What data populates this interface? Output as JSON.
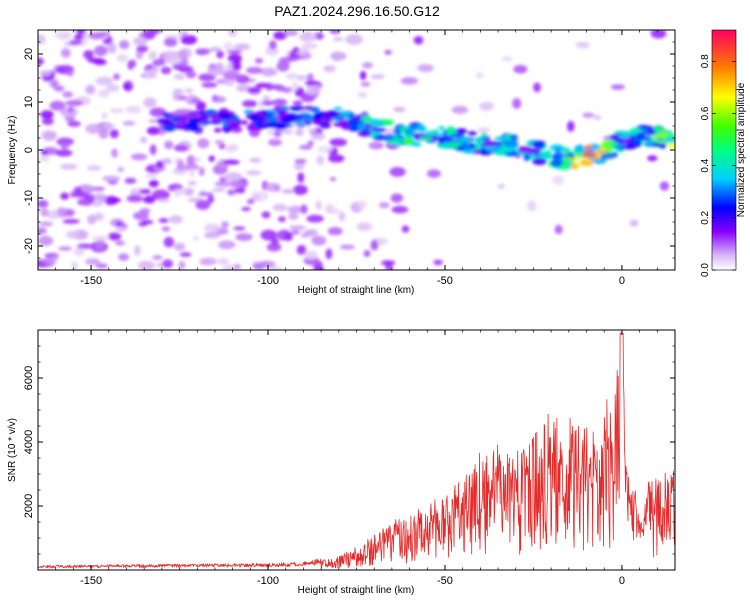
{
  "title": "PAZ1.2024.296.16.50.G12",
  "chart_data": [
    {
      "type": "heatmap",
      "title": "PAZ1.2024.296.16.50.G12",
      "xlabel": "Height of straight line (km)",
      "ylabel": "Frequency (Hz)",
      "xlim": [
        -165,
        15
      ],
      "ylim": [
        -25,
        25
      ],
      "x_ticks": [
        -150,
        -100,
        -50,
        0
      ],
      "y_ticks": [
        -20,
        -10,
        0,
        10,
        20
      ],
      "colorbar": {
        "label": "Normalized spectral amplitude",
        "range": [
          0,
          0.92
        ],
        "ticks": [
          "0.0",
          "0.2",
          "0.4",
          "0.6",
          "0.8"
        ]
      },
      "ridge": {
        "x": [
          -125,
          -110,
          -95,
          -82,
          -75,
          -68,
          -60,
          -52,
          -45,
          -38,
          -32,
          -26,
          -20,
          -15,
          -10,
          -5,
          0,
          5,
          10,
          15
        ],
        "frequency": [
          6,
          6,
          7,
          7,
          6,
          4,
          3,
          3,
          2,
          1,
          1,
          0,
          -1,
          -2,
          -1,
          -1,
          2,
          3,
          3,
          1
        ],
        "amplitude": [
          0.25,
          0.3,
          0.3,
          0.35,
          0.4,
          0.45,
          0.5,
          0.45,
          0.4,
          0.4,
          0.45,
          0.4,
          0.5,
          0.6,
          0.75,
          0.7,
          0.4,
          0.45,
          0.55,
          0.7
        ]
      }
    },
    {
      "type": "line",
      "xlabel": "Height of straight line (km)",
      "ylabel": "SNR (10 * v/v)",
      "xlim": [
        -165,
        15
      ],
      "ylim": [
        0,
        7500
      ],
      "x_ticks": [
        -150,
        -100,
        -50,
        0
      ],
      "y_ticks": [
        2000,
        4000,
        6000
      ],
      "color": "#e52a2a",
      "envelope": {
        "x": [
          -165,
          -100,
          -90,
          -80,
          -72,
          -65,
          -55,
          -45,
          -38,
          -30,
          -20,
          -12,
          -8,
          -2,
          0,
          2,
          5,
          10,
          15
        ],
        "y": [
          120,
          170,
          200,
          400,
          900,
          1500,
          1900,
          2700,
          3800,
          3600,
          4800,
          4400,
          4400,
          5400,
          7400,
          2300,
          2400,
          2900,
          3000
        ]
      }
    }
  ]
}
